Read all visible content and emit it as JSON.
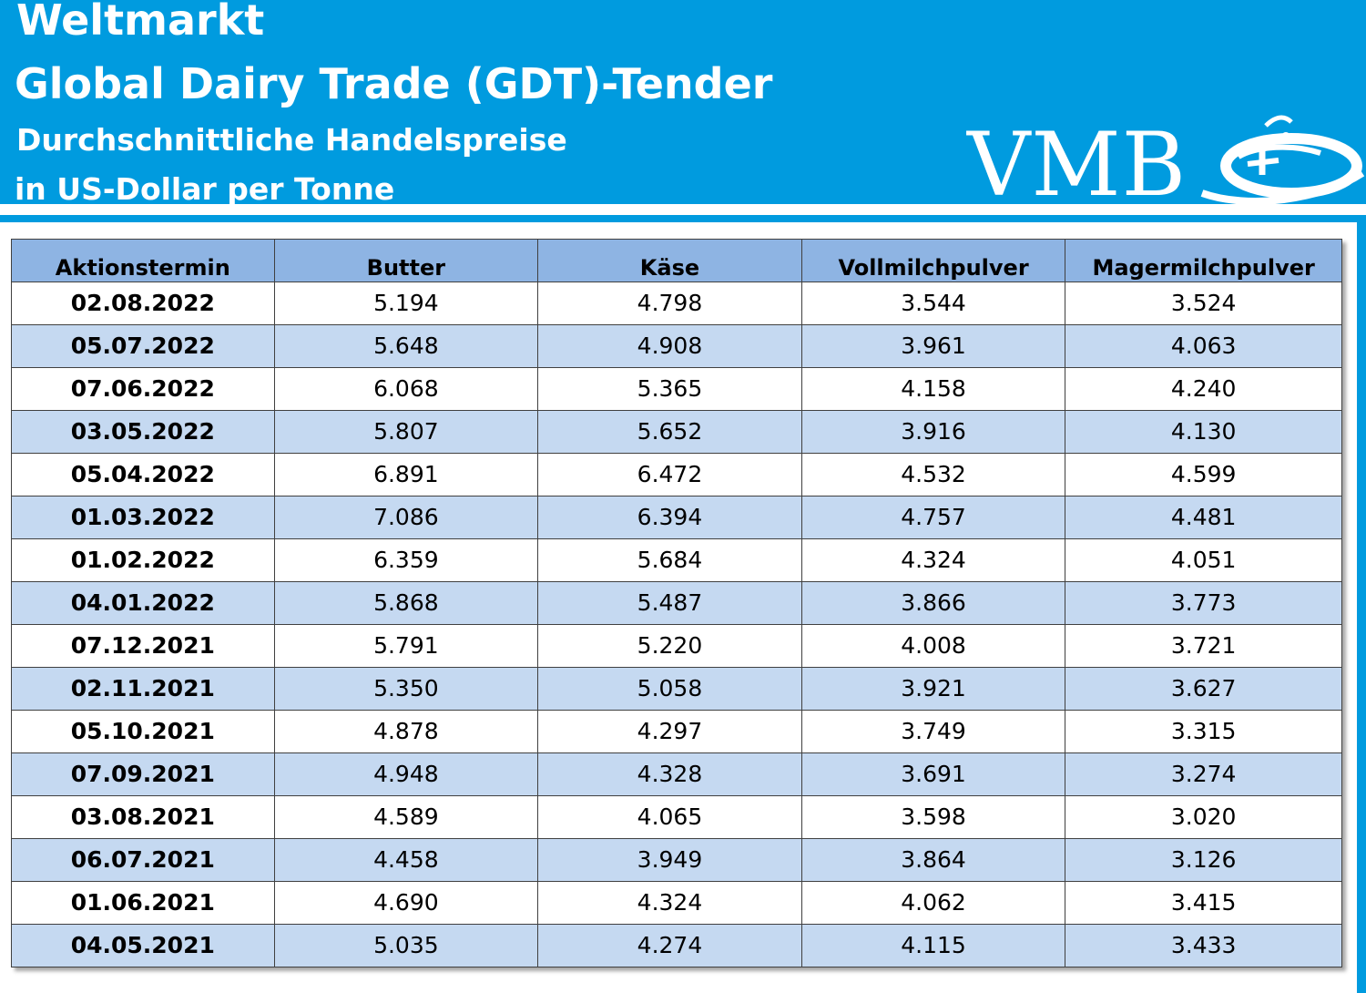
{
  "header": {
    "line1": "Weltmarkt",
    "line2": "Global Dairy Trade (GDT)-Tender",
    "line3": "Durchschnittliche Handelspreise",
    "line4": "in US-Dollar per Tonne",
    "logo_text": "VMB"
  },
  "colors": {
    "header_bg": "#009bdf",
    "table_header_bg": "#8eb4e3",
    "row_alt_bg": "#c5d9f1"
  },
  "table": {
    "columns": [
      "Aktionstermin",
      "Butter",
      "Käse",
      "Vollmilchpulver",
      "Magermilchpulver"
    ],
    "rows": [
      [
        "02.08.2022",
        "5.194",
        "4.798",
        "3.544",
        "3.524"
      ],
      [
        "05.07.2022",
        "5.648",
        "4.908",
        "3.961",
        "4.063"
      ],
      [
        "07.06.2022",
        "6.068",
        "5.365",
        "4.158",
        "4.240"
      ],
      [
        "03.05.2022",
        "5.807",
        "5.652",
        "3.916",
        "4.130"
      ],
      [
        "05.04.2022",
        "6.891",
        "6.472",
        "4.532",
        "4.599"
      ],
      [
        "01.03.2022",
        "7.086",
        "6.394",
        "4.757",
        "4.481"
      ],
      [
        "01.02.2022",
        "6.359",
        "5.684",
        "4.324",
        "4.051"
      ],
      [
        "04.01.2022",
        "5.868",
        "5.487",
        "3.866",
        "3.773"
      ],
      [
        "07.12.2021",
        "5.791",
        "5.220",
        "4.008",
        "3.721"
      ],
      [
        "02.11.2021",
        "5.350",
        "5.058",
        "3.921",
        "3.627"
      ],
      [
        "05.10.2021",
        "4.878",
        "4.297",
        "3.749",
        "3.315"
      ],
      [
        "07.09.2021",
        "4.948",
        "4.328",
        "3.691",
        "3.274"
      ],
      [
        "03.08.2021",
        "4.589",
        "4.065",
        "3.598",
        "3.020"
      ],
      [
        "06.07.2021",
        "4.458",
        "3.949",
        "3.864",
        "3.126"
      ],
      [
        "01.06.2021",
        "4.690",
        "4.324",
        "4.062",
        "3.415"
      ],
      [
        "04.05.2021",
        "5.035",
        "4.274",
        "4.115",
        "3.433"
      ]
    ]
  }
}
